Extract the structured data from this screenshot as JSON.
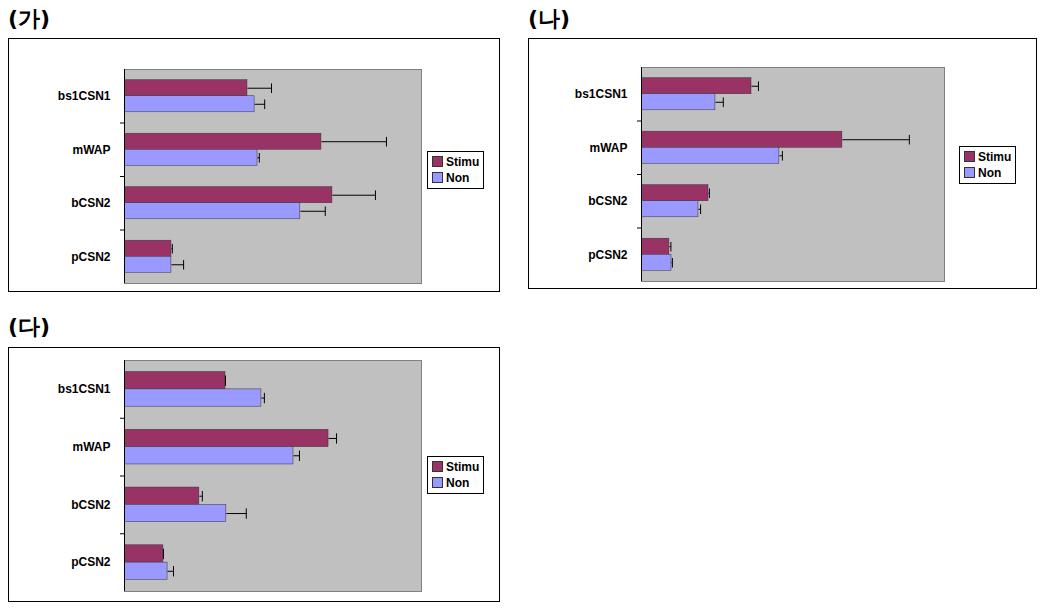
{
  "chart_data": [
    {
      "type": "bar",
      "title": "(가)",
      "orientation": "horizontal",
      "tick_labels": "y",
      "legend": "right",
      "categories": [
        "bs1CSN1",
        "mWAP",
        "bCSN2",
        "pCSN2"
      ],
      "xlim": [
        0,
        100
      ],
      "series": [
        {
          "name": "Stimu",
          "color": "#993366",
          "values": [
            41.4,
            66.3,
            70.0,
            15.8
          ],
          "errors": [
            8.1,
            21.9,
            14.5,
            0.3
          ]
        },
        {
          "name": "Non",
          "color": "#9999FF",
          "values": [
            43.8,
            44.8,
            59.2,
            15.8
          ],
          "errors": [
            3.4,
            0.6,
            8.4,
            4.1
          ]
        }
      ]
    },
    {
      "type": "bar",
      "title": "(나)",
      "orientation": "horizontal",
      "tick_labels": "y",
      "legend": "right",
      "categories": [
        "bs1CSN1",
        "mWAP",
        "bCSN2",
        "pCSN2"
      ],
      "xlim": [
        0,
        100
      ],
      "series": [
        {
          "name": "Stimu",
          "color": "#993366",
          "values": [
            36.3,
            66.3,
            22.1,
            9.2
          ],
          "errors": [
            2.3,
            22.1,
            0.3,
            0.5
          ]
        },
        {
          "name": "Non",
          "color": "#9999FF",
          "values": [
            24.4,
            45.5,
            18.8,
            9.9
          ],
          "errors": [
            2.6,
            1.0,
            0.7,
            0.3
          ]
        }
      ]
    },
    {
      "type": "bar",
      "title": "(다)",
      "orientation": "horizontal",
      "tick_labels": "y",
      "legend": "right",
      "categories": [
        "bs1CSN1",
        "mWAP",
        "bCSN2",
        "pCSN2"
      ],
      "xlim": [
        0,
        100
      ],
      "series": [
        {
          "name": "Stimu",
          "color": "#993366",
          "values": [
            34.0,
            68.7,
            25.2,
            13.1
          ],
          "errors": [
            0,
            2.7,
            1.0,
            0
          ]
        },
        {
          "name": "Non",
          "color": "#9999FF",
          "values": [
            46.1,
            56.9,
            34.3,
            14.5
          ],
          "errors": [
            1.0,
            2.0,
            6.7,
            2.0
          ]
        }
      ]
    }
  ]
}
